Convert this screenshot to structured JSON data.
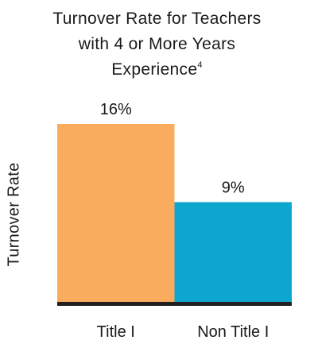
{
  "chart_data": {
    "type": "bar",
    "title_lines": [
      "Turnover Rate for Teachers",
      "with 4 or More Years",
      "Experience"
    ],
    "title_superscript": "4",
    "xlabel": "",
    "ylabel": "Turnover Rate",
    "categories": [
      "Title I",
      "Non Title I"
    ],
    "values": [
      16,
      9
    ],
    "data_labels": [
      "16%",
      "9%"
    ],
    "colors": [
      "#F9AC5E",
      "#0CA6CE"
    ],
    "baseline_color": "#231F20",
    "ylim": [
      0,
      16
    ],
    "grid": false,
    "legend": "none"
  }
}
